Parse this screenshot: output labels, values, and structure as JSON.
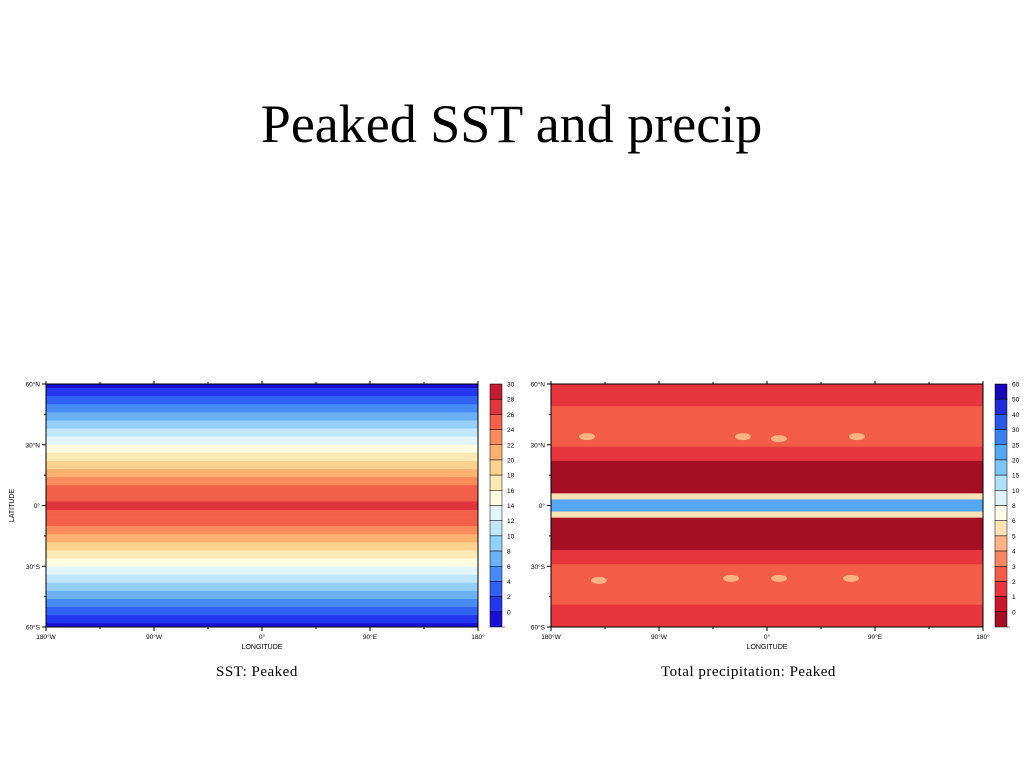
{
  "slide": {
    "title": "Peaked SST and precip"
  },
  "colors": {
    "sst_palette": [
      "#1a0fd4",
      "#2436f0",
      "#2f62f2",
      "#468cf4",
      "#6cb0f6",
      "#94cff8",
      "#bfe6fa",
      "#e2f5fb",
      "#fefbe0",
      "#fde9b4",
      "#fdd28e",
      "#fcb172",
      "#f98c5a",
      "#f3604a",
      "#e0353c",
      "#c41a2e"
    ],
    "precip_palette": [
      "#a50f24",
      "#c8182d",
      "#e6353c",
      "#f35c48",
      "#fa8560",
      "#fdb285",
      "#fde2b6",
      "#fefbe6",
      "#dff3fb",
      "#aee0f8",
      "#7cc6f6",
      "#55a6f3",
      "#3a80ef",
      "#2a58e8",
      "#1d2ed8",
      "#1408b8"
    ]
  },
  "chart_data": [
    {
      "type": "heatmap",
      "caption": "SST: Peaked",
      "xlabel": "LONGITUDE",
      "ylabel": "LATITUDE",
      "xlim": [
        -180,
        180
      ],
      "ylim": [
        -60,
        60
      ],
      "x_ticks": [
        "180°W",
        "90°W",
        "0°",
        "90°E",
        "180°"
      ],
      "y_ticks": [
        "60°N",
        "30°N",
        "0°",
        "30°S",
        "60°S"
      ],
      "colorbar_labels": [
        "30",
        "28",
        "26",
        "24",
        "22",
        "20",
        "18",
        "16",
        "14",
        "12",
        "10",
        "8",
        "6",
        "4",
        "2",
        "0"
      ],
      "description": "zonally uniform SST, maximum ~29 at the equator decreasing to ~0 at 60°N/60°S",
      "lat_profile": [
        {
          "lat": 60,
          "value": 0.5
        },
        {
          "lat": 56,
          "value": 2.5
        },
        {
          "lat": 52,
          "value": 4.5
        },
        {
          "lat": 48,
          "value": 6.5
        },
        {
          "lat": 44,
          "value": 8.5
        },
        {
          "lat": 40,
          "value": 10.5
        },
        {
          "lat": 36,
          "value": 12.5
        },
        {
          "lat": 32,
          "value": 14.5
        },
        {
          "lat": 28,
          "value": 16.5
        },
        {
          "lat": 24,
          "value": 18.5
        },
        {
          "lat": 20,
          "value": 20.5
        },
        {
          "lat": 16,
          "value": 22.5
        },
        {
          "lat": 12,
          "value": 24.5
        },
        {
          "lat": 8,
          "value": 26.5
        },
        {
          "lat": 4,
          "value": 27.5
        },
        {
          "lat": 0,
          "value": 29
        }
      ]
    },
    {
      "type": "heatmap",
      "caption": "Total precipitation: Peaked",
      "xlabel": "LONGITUDE",
      "ylabel": "",
      "xlim": [
        -180,
        180
      ],
      "ylim": [
        -60,
        60
      ],
      "x_ticks": [
        "180°W",
        "90°W",
        "0°",
        "90°E",
        "180°"
      ],
      "y_ticks": [
        "60°N",
        "30°N",
        "0°",
        "30°S",
        "60°S"
      ],
      "colorbar_labels": [
        "60",
        "50",
        "40",
        "30",
        "25",
        "20",
        "15",
        "10",
        "8",
        "6",
        "5",
        "4",
        "3",
        "2",
        "1",
        "0"
      ],
      "description": "narrow intense band (~20-40) at the equator, dry bands (<1) at ~5-20° latitude, 1-4 elsewhere",
      "lat_bands": [
        {
          "lat_from": 60,
          "lat_to": 49,
          "value": 2.5
        },
        {
          "lat_from": 49,
          "lat_to": 43,
          "value": 3.5
        },
        {
          "lat_from": 43,
          "lat_to": 29,
          "value": 3.5
        },
        {
          "lat_from": 29,
          "lat_to": 22,
          "value": 2.5
        },
        {
          "lat_from": 22,
          "lat_to": 6,
          "value": 0.5
        },
        {
          "lat_from": 6,
          "lat_to": 3,
          "value": 6
        },
        {
          "lat_from": 3,
          "lat_to": -3,
          "value": 25
        },
        {
          "lat_from": -3,
          "lat_to": -6,
          "value": 6
        },
        {
          "lat_from": -6,
          "lat_to": -22,
          "value": 0.5
        },
        {
          "lat_from": -22,
          "lat_to": -29,
          "value": 2.5
        },
        {
          "lat_from": -29,
          "lat_to": -43,
          "value": 3.5
        },
        {
          "lat_from": -43,
          "lat_to": -49,
          "value": 3.5
        },
        {
          "lat_from": -49,
          "lat_to": -60,
          "value": 2.5
        }
      ]
    }
  ]
}
